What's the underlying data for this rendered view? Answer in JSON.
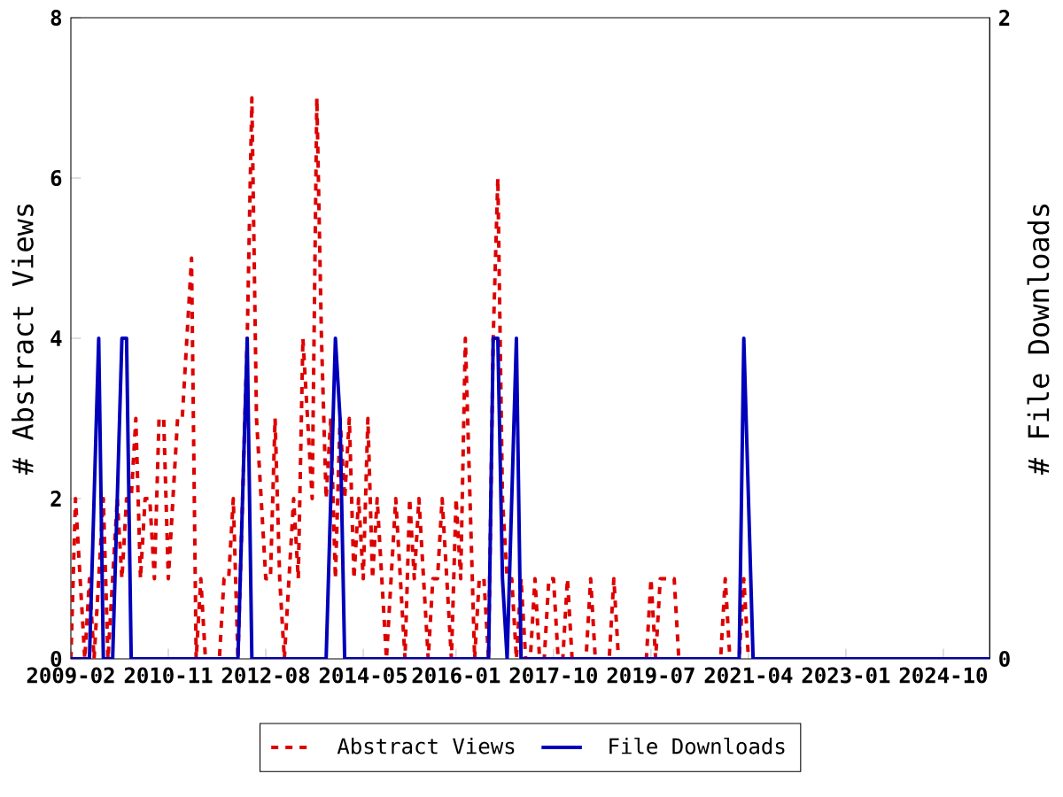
{
  "chart_data": {
    "type": "line",
    "ylabel": "# Abstract Views",
    "y2label": "# File Downloads",
    "xlim": [
      "2009-02",
      "2025-08"
    ],
    "xticks": [
      "2009-02",
      "2010-11",
      "2012-08",
      "2014-05",
      "2016-01",
      "2017-10",
      "2019-07",
      "2021-04",
      "2023-01",
      "2024-10"
    ],
    "ylim": [
      0,
      8
    ],
    "yticks": [
      0,
      2,
      4,
      6,
      8
    ],
    "y2lim": [
      0,
      2
    ],
    "y2ticks": [
      0,
      2
    ],
    "legend": "bottom",
    "x": [
      "2009-02",
      "2009-03",
      "2009-04",
      "2009-05",
      "2009-06",
      "2009-07",
      "2009-08",
      "2009-09",
      "2009-10",
      "2009-11",
      "2009-12",
      "2010-01",
      "2010-02",
      "2010-03",
      "2010-04",
      "2010-05",
      "2010-06",
      "2010-07",
      "2010-08",
      "2010-09",
      "2010-10",
      "2010-11",
      "2010-12",
      "2011-01",
      "2011-02",
      "2011-03",
      "2011-04",
      "2011-05",
      "2011-06",
      "2011-07",
      "2011-08",
      "2011-09",
      "2011-10",
      "2011-11",
      "2011-12",
      "2012-01",
      "2012-02",
      "2012-03",
      "2012-04",
      "2012-05",
      "2012-06",
      "2012-07",
      "2012-08",
      "2012-09",
      "2012-10",
      "2012-11",
      "2012-12",
      "2013-01",
      "2013-02",
      "2013-03",
      "2013-04",
      "2013-05",
      "2013-06",
      "2013-07",
      "2013-08",
      "2013-09",
      "2013-10",
      "2013-11",
      "2013-12",
      "2014-01",
      "2014-02",
      "2014-03",
      "2014-04",
      "2014-05",
      "2014-06",
      "2014-07",
      "2014-08",
      "2014-09",
      "2014-10",
      "2014-11",
      "2014-12",
      "2015-01",
      "2015-02",
      "2015-03",
      "2015-04",
      "2015-05",
      "2015-06",
      "2015-07",
      "2015-08",
      "2015-09",
      "2015-10",
      "2015-11",
      "2015-12",
      "2016-01",
      "2016-02",
      "2016-03",
      "2016-04",
      "2016-05",
      "2016-06",
      "2016-07",
      "2016-08",
      "2016-09",
      "2016-10",
      "2016-11",
      "2016-12",
      "2017-01",
      "2017-02",
      "2017-03",
      "2017-04",
      "2017-05",
      "2017-06",
      "2017-07",
      "2017-08",
      "2017-09",
      "2017-10",
      "2017-11",
      "2017-12",
      "2018-01",
      "2018-02",
      "2018-03",
      "2018-04",
      "2018-05",
      "2018-06",
      "2018-07",
      "2018-08",
      "2018-09",
      "2018-10",
      "2018-11",
      "2018-12",
      "2019-01",
      "2019-02",
      "2019-03",
      "2019-04",
      "2019-05",
      "2019-06",
      "2019-07",
      "2019-08",
      "2019-09",
      "2019-10",
      "2019-11",
      "2019-12",
      "2020-01",
      "2020-02",
      "2020-03",
      "2020-04",
      "2020-05",
      "2020-06",
      "2020-07",
      "2020-08",
      "2020-09",
      "2020-10",
      "2020-11",
      "2020-12",
      "2021-01",
      "2021-02",
      "2021-03",
      "2021-04",
      "2021-05",
      "2021-06",
      "2021-07",
      "2021-08",
      "2021-09",
      "2021-10",
      "2021-11",
      "2021-12",
      "2022-01",
      "2022-02",
      "2022-03",
      "2022-04",
      "2022-05",
      "2022-06",
      "2022-07",
      "2022-08",
      "2022-09",
      "2022-10",
      "2022-11",
      "2022-12",
      "2023-01",
      "2023-02",
      "2023-03",
      "2023-04",
      "2023-05",
      "2023-06",
      "2023-07",
      "2023-08",
      "2023-09",
      "2023-10",
      "2023-11",
      "2023-12",
      "2024-01",
      "2024-02",
      "2024-03",
      "2024-04",
      "2024-05",
      "2024-06",
      "2024-07",
      "2024-08",
      "2024-09",
      "2024-10",
      "2024-11",
      "2024-12",
      "2025-01",
      "2025-02",
      "2025-03",
      "2025-04",
      "2025-05",
      "2025-06",
      "2025-07",
      "2025-08"
    ],
    "series": [
      {
        "name": "Abstract Views",
        "color": "#dd0000",
        "line_style": "dashed",
        "values": [
          0,
          2,
          1,
          0,
          1,
          0,
          1,
          2,
          0,
          1,
          2,
          1,
          2,
          2,
          3,
          1,
          2,
          2,
          1,
          3,
          3,
          1,
          2,
          3,
          3,
          4,
          5,
          0,
          1,
          0,
          0,
          0,
          0,
          1,
          1,
          2,
          0,
          2,
          4,
          7,
          3,
          2,
          1,
          1,
          3,
          1,
          0,
          1,
          2,
          1,
          4,
          3,
          2,
          7,
          4,
          2,
          3,
          1,
          3,
          2,
          3,
          1,
          2,
          1,
          3,
          1,
          2,
          1,
          0,
          1,
          2,
          1,
          0,
          2,
          1,
          2,
          1,
          0,
          1,
          1,
          2,
          1,
          0,
          2,
          1,
          4,
          2,
          0,
          1,
          1,
          0,
          4,
          6,
          2,
          1,
          1,
          0,
          1,
          0,
          0,
          1,
          0,
          0,
          1,
          1,
          0,
          0,
          1,
          0,
          0,
          0,
          0,
          1,
          0,
          0,
          0,
          0,
          1,
          0,
          0,
          0,
          0,
          0,
          0,
          0,
          1,
          0,
          1,
          1,
          1,
          1,
          0,
          0,
          0,
          0,
          0,
          0,
          0,
          0,
          0,
          0,
          1,
          0,
          0,
          0,
          1,
          0,
          null,
          null,
          null,
          null,
          null,
          null,
          null,
          null,
          null,
          null,
          null,
          null,
          null,
          null,
          null,
          null,
          null,
          null,
          null,
          null,
          null,
          null,
          null,
          null,
          null,
          null,
          null,
          null,
          null,
          null,
          null,
          null,
          null,
          null,
          null,
          null,
          null,
          null,
          null,
          null,
          null,
          null,
          null,
          null,
          null,
          null,
          null,
          null,
          null,
          null,
          null,
          null
        ]
      },
      {
        "name": "File Downloads",
        "color": "#0000bb",
        "line_style": "solid",
        "axis": "y2",
        "values": [
          0,
          0,
          0,
          0,
          0,
          0.5,
          1,
          0,
          0,
          0,
          0.5,
          1,
          1,
          0,
          0,
          0,
          0,
          0,
          0,
          0,
          0,
          0,
          0,
          0,
          0,
          0,
          0,
          0,
          0,
          0,
          0,
          0,
          0,
          0,
          0,
          0,
          0,
          0.5,
          1,
          0,
          0,
          0,
          0,
          0,
          0,
          0,
          0,
          0,
          0,
          0,
          0,
          0,
          0,
          0,
          0,
          0,
          0.5,
          1,
          0.75,
          0,
          0,
          0,
          0,
          0,
          0,
          0,
          0,
          0,
          0,
          0,
          0,
          0,
          0,
          0,
          0,
          0,
          0,
          0,
          0,
          0,
          0,
          0,
          0,
          0,
          0,
          0,
          0,
          0,
          0,
          0,
          0,
          1,
          1,
          0.25,
          0,
          0.5,
          1,
          0,
          0,
          0,
          0,
          0,
          0,
          0,
          0,
          0,
          0,
          0,
          0,
          0,
          0,
          0,
          0,
          0,
          0,
          0,
          0,
          0,
          0,
          0,
          0,
          0,
          0,
          0,
          0,
          0,
          0,
          0,
          0,
          0,
          0,
          0,
          0,
          0,
          0,
          0,
          0,
          0,
          0,
          0,
          0,
          0,
          0,
          0,
          0,
          1,
          0.5,
          0,
          0,
          0,
          0,
          0,
          0,
          0,
          0,
          0,
          0,
          0,
          0,
          0,
          0,
          0,
          0,
          0,
          0,
          0,
          0,
          0,
          0,
          0,
          0,
          0,
          0,
          0,
          0,
          0,
          0,
          0,
          0,
          0,
          0,
          0,
          0,
          0,
          0,
          0,
          0,
          0,
          0,
          0,
          0,
          0,
          0,
          0,
          0,
          0,
          0,
          0,
          0
        ]
      }
    ]
  }
}
